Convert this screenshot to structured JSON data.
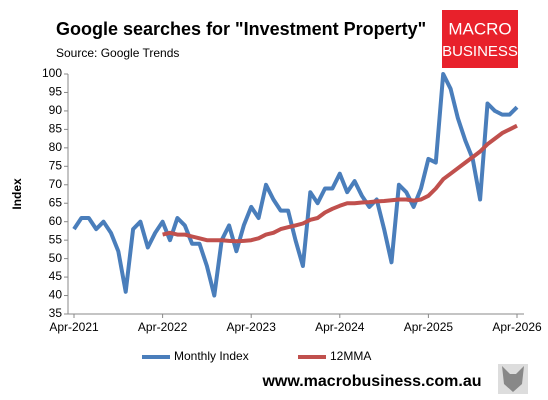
{
  "chart_data": {
    "type": "line",
    "title": "Google searches for \"Investment Property\"",
    "subtitle": "Source: Google Trends",
    "y_label": "Index",
    "logo": [
      "MACRO",
      "BUSINESS"
    ],
    "footer": "www.macrobusiness.com.au",
    "categories": [
      "Apr-2021",
      null,
      null,
      null,
      null,
      null,
      null,
      null,
      null,
      null,
      null,
      null,
      "Apr-2022",
      null,
      null,
      null,
      null,
      null,
      null,
      null,
      null,
      null,
      null,
      null,
      "Apr-2023",
      null,
      null,
      null,
      null,
      null,
      null,
      null,
      null,
      null,
      null,
      null,
      "Apr-2024",
      null,
      null,
      null,
      null,
      null,
      null,
      null,
      null,
      null,
      null,
      null,
      "Apr-2025",
      null,
      null,
      null,
      null,
      null,
      null,
      null,
      null,
      null,
      null,
      null,
      "Apr-2026"
    ],
    "ylim": [
      35,
      100
    ],
    "yticks": [
      35,
      40,
      45,
      50,
      55,
      60,
      65,
      70,
      75,
      80,
      85,
      90,
      95,
      100
    ],
    "grid": false,
    "legend": "bottom",
    "series": [
      {
        "name": "Monthly Index",
        "color": "#4a7ebb",
        "values": [
          58,
          61,
          61,
          58,
          60,
          57,
          52,
          41,
          58,
          60,
          53,
          57,
          60,
          55,
          61,
          59,
          54,
          54,
          48,
          40,
          55,
          59,
          52,
          59,
          64,
          61,
          70,
          66,
          63,
          63,
          55,
          48,
          68,
          65,
          69,
          69,
          73,
          68,
          71,
          67,
          64,
          66,
          58,
          49,
          70,
          68,
          64,
          69,
          77,
          76,
          100,
          96,
          88,
          82,
          77,
          66,
          92,
          90,
          89,
          89,
          91
        ]
      },
      {
        "name": "12MMA",
        "color": "#c0504d",
        "values": [
          null,
          null,
          null,
          null,
          null,
          null,
          null,
          null,
          null,
          null,
          null,
          null,
          56.5,
          57,
          56.5,
          56.5,
          56,
          55.5,
          55,
          55,
          55,
          54.8,
          54.7,
          54.8,
          55,
          55.5,
          56.5,
          57,
          58,
          58.5,
          59,
          59.5,
          60.5,
          61,
          62.5,
          63.5,
          64.3,
          65,
          65,
          65.2,
          65.3,
          65.5,
          65.6,
          65.8,
          66,
          66,
          65.7,
          66,
          67,
          69,
          71.5,
          73,
          74.5,
          76,
          77.5,
          79,
          81,
          82.5,
          84,
          85,
          86
        ]
      }
    ]
  }
}
